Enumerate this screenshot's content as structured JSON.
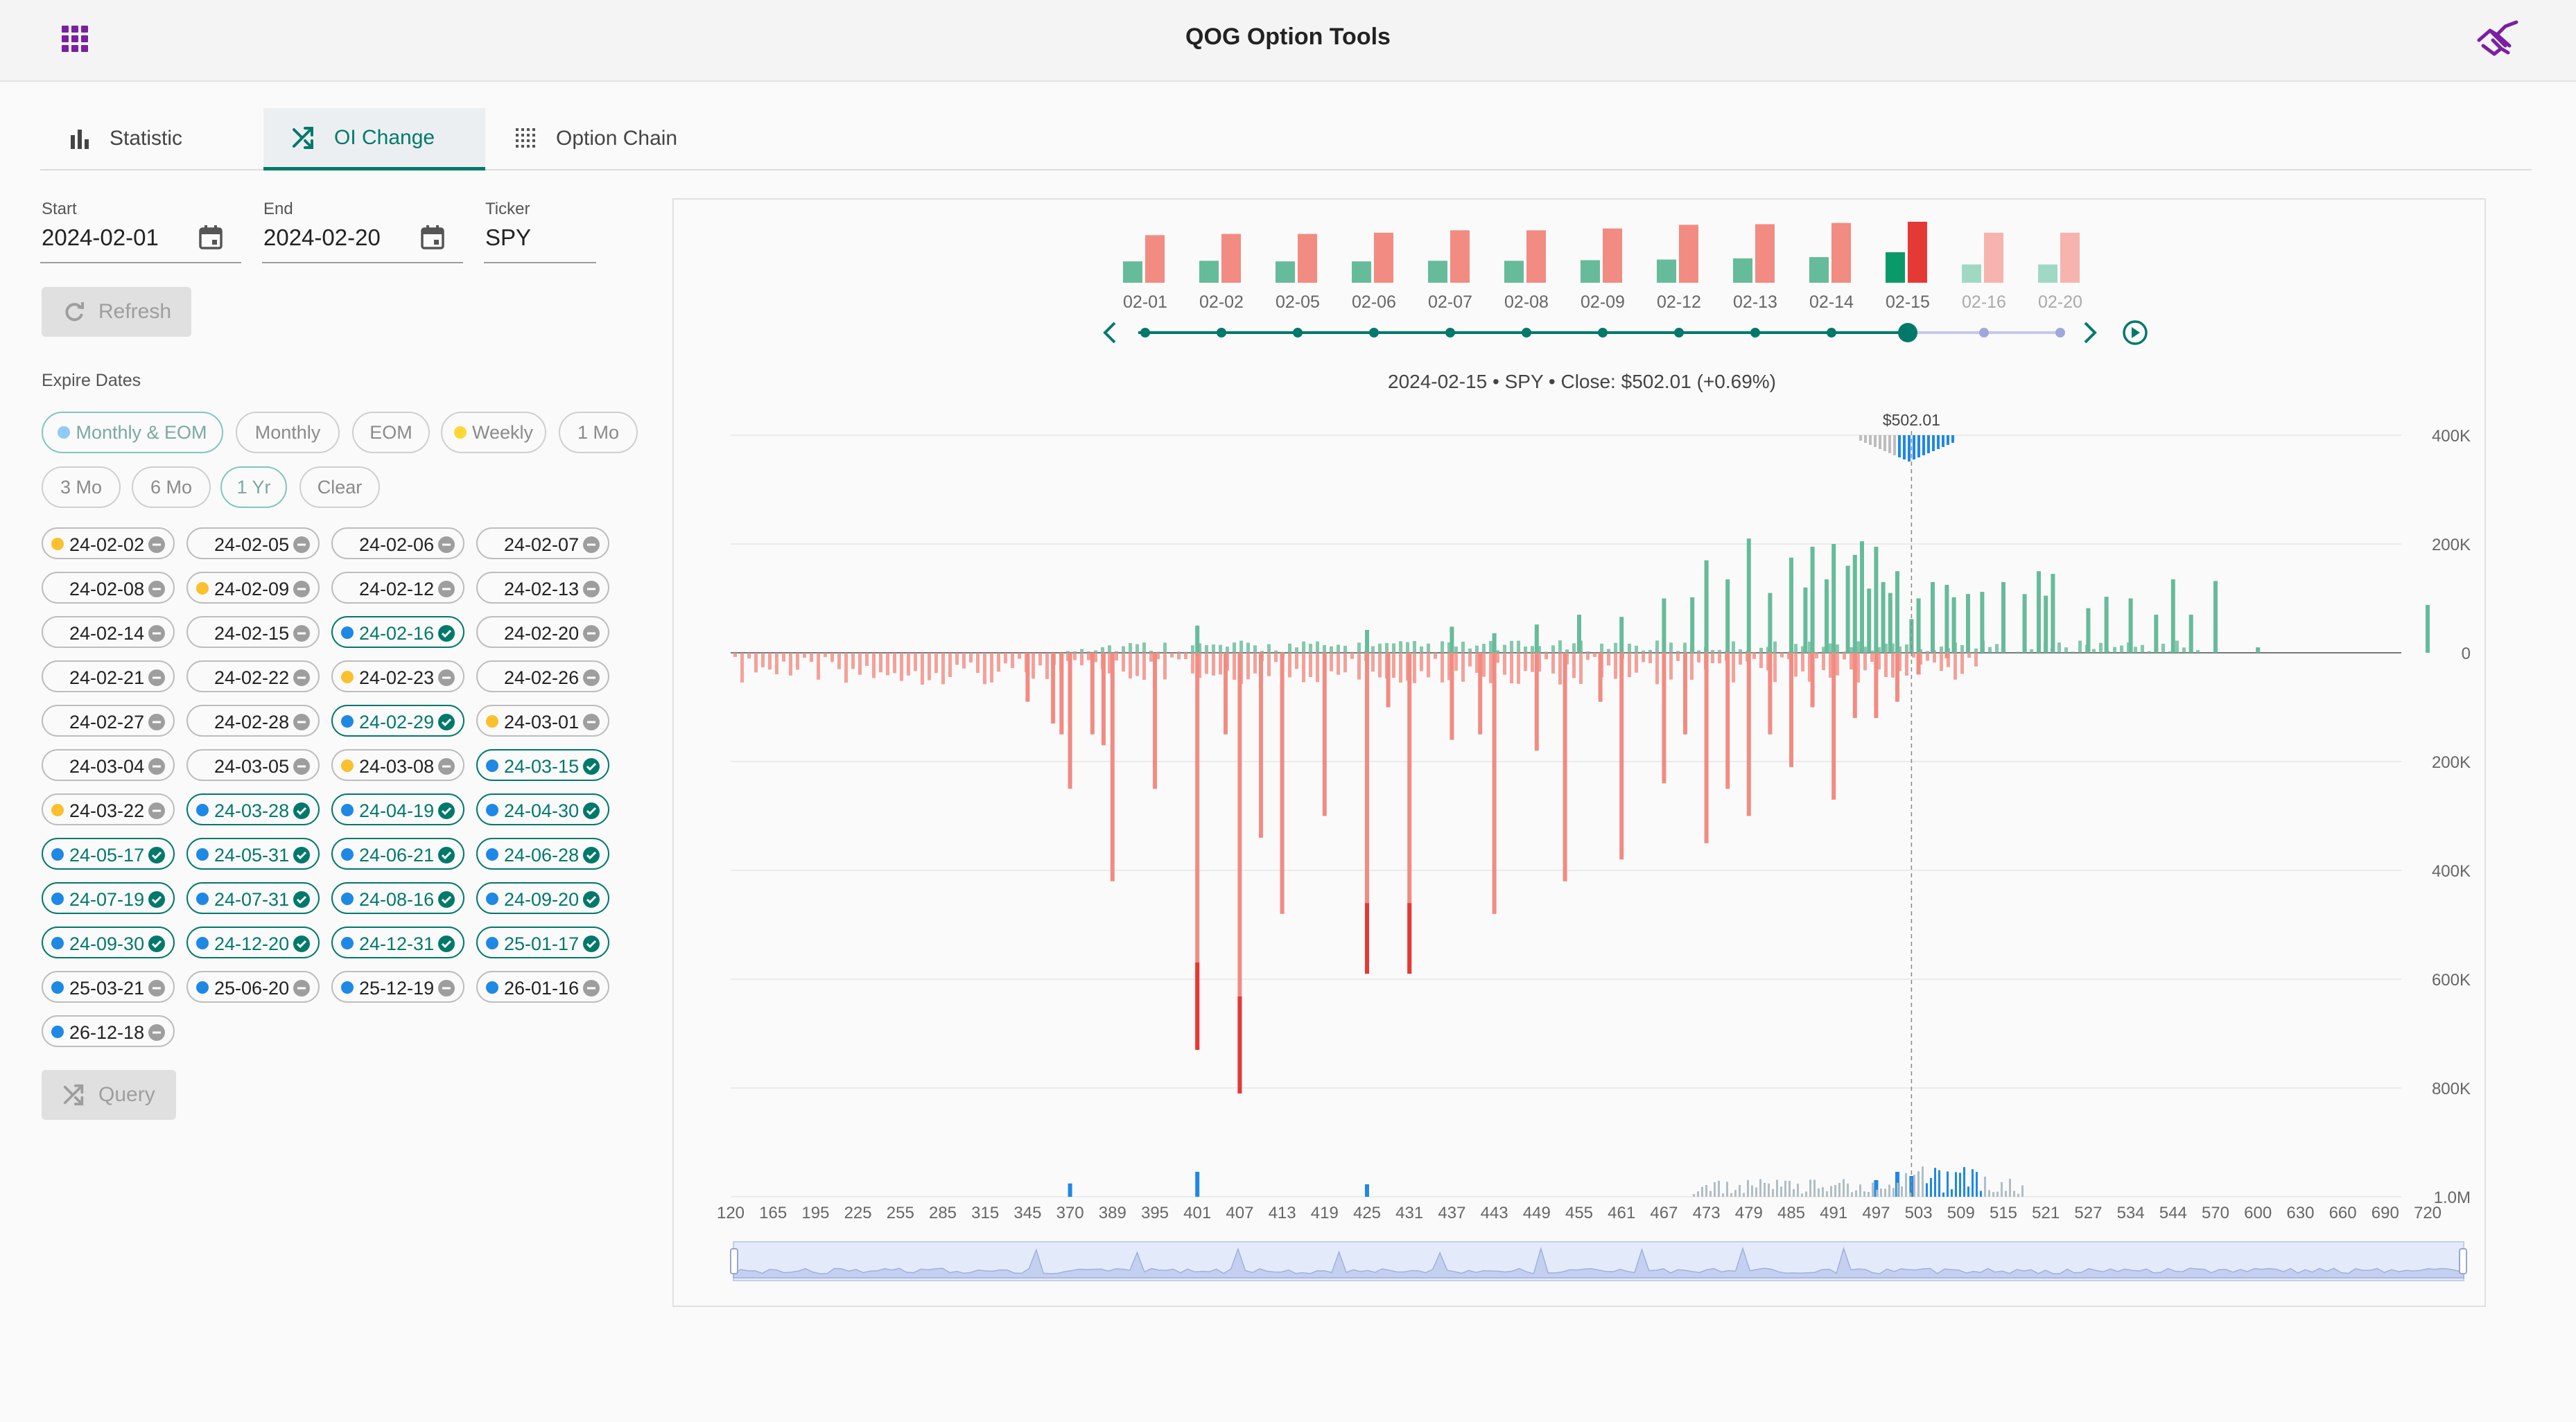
{
  "app": {
    "title": "QOG Option Tools"
  },
  "tabs": [
    {
      "id": "statistic",
      "label": "Statistic",
      "icon": "bar-chart-icon",
      "active": false
    },
    {
      "id": "oi-change",
      "label": "OI Change",
      "icon": "shuffle-icon",
      "active": true
    },
    {
      "id": "option-chain",
      "label": "Option Chain",
      "icon": "grid-icon",
      "active": false
    }
  ],
  "form": {
    "start": {
      "label": "Start",
      "value": "2024-02-01"
    },
    "end": {
      "label": "End",
      "value": "2024-02-20"
    },
    "ticker": {
      "label": "Ticker",
      "value": "SPY"
    },
    "refresh_label": "Refresh",
    "query_label": "Query"
  },
  "expire": {
    "label": "Expire Dates",
    "presets": [
      "Monthly & EOM",
      "Monthly",
      "EOM",
      "Weekly",
      "1 Mo",
      "3 Mo",
      "6 Mo",
      "1 Yr",
      "Clear"
    ],
    "dates": [
      {
        "label": "24-02-02",
        "dot": "yellow",
        "selected": false
      },
      {
        "label": "24-02-05",
        "dot": "none",
        "selected": false
      },
      {
        "label": "24-02-06",
        "dot": "none",
        "selected": false
      },
      {
        "label": "24-02-07",
        "dot": "none",
        "selected": false
      },
      {
        "label": "24-02-08",
        "dot": "none",
        "selected": false
      },
      {
        "label": "24-02-09",
        "dot": "yellow",
        "selected": false
      },
      {
        "label": "24-02-12",
        "dot": "none",
        "selected": false
      },
      {
        "label": "24-02-13",
        "dot": "none",
        "selected": false
      },
      {
        "label": "24-02-14",
        "dot": "none",
        "selected": false
      },
      {
        "label": "24-02-15",
        "dot": "none",
        "selected": false
      },
      {
        "label": "24-02-16",
        "dot": "blue",
        "selected": true
      },
      {
        "label": "24-02-20",
        "dot": "none",
        "selected": false
      },
      {
        "label": "24-02-21",
        "dot": "none",
        "selected": false
      },
      {
        "label": "24-02-22",
        "dot": "none",
        "selected": false
      },
      {
        "label": "24-02-23",
        "dot": "yellow",
        "selected": false
      },
      {
        "label": "24-02-26",
        "dot": "none",
        "selected": false
      },
      {
        "label": "24-02-27",
        "dot": "none",
        "selected": false
      },
      {
        "label": "24-02-28",
        "dot": "none",
        "selected": false
      },
      {
        "label": "24-02-29",
        "dot": "blue",
        "selected": true
      },
      {
        "label": "24-03-01",
        "dot": "yellow",
        "selected": false
      },
      {
        "label": "24-03-04",
        "dot": "none",
        "selected": false
      },
      {
        "label": "24-03-05",
        "dot": "none",
        "selected": false
      },
      {
        "label": "24-03-08",
        "dot": "yellow",
        "selected": false
      },
      {
        "label": "24-03-15",
        "dot": "blue",
        "selected": true
      },
      {
        "label": "24-03-22",
        "dot": "yellow",
        "selected": false
      },
      {
        "label": "24-03-28",
        "dot": "blue",
        "selected": true
      },
      {
        "label": "24-04-19",
        "dot": "blue",
        "selected": true
      },
      {
        "label": "24-04-30",
        "dot": "blue",
        "selected": true
      },
      {
        "label": "24-05-17",
        "dot": "blue",
        "selected": true
      },
      {
        "label": "24-05-31",
        "dot": "blue",
        "selected": true
      },
      {
        "label": "24-06-21",
        "dot": "blue",
        "selected": true
      },
      {
        "label": "24-06-28",
        "dot": "blue",
        "selected": true
      },
      {
        "label": "24-07-19",
        "dot": "blue",
        "selected": true
      },
      {
        "label": "24-07-31",
        "dot": "blue",
        "selected": true
      },
      {
        "label": "24-08-16",
        "dot": "blue",
        "selected": true
      },
      {
        "label": "24-09-20",
        "dot": "blue",
        "selected": true
      },
      {
        "label": "24-09-30",
        "dot": "blue",
        "selected": true
      },
      {
        "label": "24-12-20",
        "dot": "blue",
        "selected": true
      },
      {
        "label": "24-12-31",
        "dot": "blue",
        "selected": true
      },
      {
        "label": "25-01-17",
        "dot": "blue",
        "selected": true
      },
      {
        "label": "25-03-21",
        "dot": "blue",
        "selected": false
      },
      {
        "label": "25-06-20",
        "dot": "blue",
        "selected": false
      },
      {
        "label": "25-12-19",
        "dot": "blue",
        "selected": false
      },
      {
        "label": "26-01-16",
        "dot": "blue",
        "selected": false
      },
      {
        "label": "26-12-18",
        "dot": "blue",
        "selected": false
      }
    ]
  },
  "colors": {
    "accent": "#00796b",
    "call": "#66bb9a",
    "put": "#f28b82",
    "call_strong": "#0a9a6a",
    "put_strong": "#e53935",
    "volume": "#1e88e5",
    "dot_yellow": "#fbc02d",
    "dot_blue": "#1e88e5",
    "dot_lightblue": "#90caf9",
    "header_purple": "#7b1fa2"
  },
  "chart_data": [
    {
      "type": "bar",
      "role": "daily-oi-timeline",
      "categories": [
        "02-01",
        "02-02",
        "02-05",
        "02-06",
        "02-07",
        "02-08",
        "02-09",
        "02-12",
        "02-13",
        "02-14",
        "02-15",
        "02-16",
        "02-20"
      ],
      "series": [
        {
          "values": [
            0.35,
            0.36,
            0.35,
            0.35,
            0.36,
            0.36,
            0.37,
            0.38,
            0.4,
            0.42,
            0.5,
            0.3,
            0.3
          ]
        },
        {
          "values": [
            0.78,
            0.8,
            0.8,
            0.82,
            0.86,
            0.86,
            0.89,
            0.95,
            0.96,
            0.98,
            1.0,
            0.82,
            0.82
          ]
        }
      ],
      "selected": "02-15"
    },
    {
      "type": "bar",
      "role": "oi-change-by-strike",
      "subtitle": "2024-02-15 • SPY • Close: $502.01 (+0.69%)",
      "marker_label": "$502.01",
      "x_tick_labels": [
        "120",
        "165",
        "195",
        "225",
        "255",
        "285",
        "315",
        "345",
        "370",
        "389",
        "395",
        "401",
        "407",
        "413",
        "419",
        "425",
        "431",
        "437",
        "443",
        "449",
        "455",
        "461",
        "467",
        "473",
        "479",
        "485",
        "491",
        "497",
        "503",
        "509",
        "515",
        "521",
        "527",
        "534",
        "544",
        "570",
        "600",
        "630",
        "660",
        "690",
        "720"
      ],
      "y_tick_labels": [
        "400K",
        "200K",
        "0",
        "200K",
        "400K",
        "600K",
        "800K",
        "1.0M"
      ],
      "ylim": [
        -1000000,
        400000
      ],
      "calls": [
        {
          "x": 401,
          "y": 50000
        },
        {
          "x": 425,
          "y": 42000
        },
        {
          "x": 437,
          "y": 48000
        },
        {
          "x": 443,
          "y": 36000
        },
        {
          "x": 449,
          "y": 52000
        },
        {
          "x": 455,
          "y": 70000
        },
        {
          "x": 461,
          "y": 66000
        },
        {
          "x": 467,
          "y": 100000
        },
        {
          "x": 471,
          "y": 102000
        },
        {
          "x": 473,
          "y": 170000
        },
        {
          "x": 476,
          "y": 135000
        },
        {
          "x": 479,
          "y": 210000
        },
        {
          "x": 482,
          "y": 110000
        },
        {
          "x": 485,
          "y": 175000
        },
        {
          "x": 487,
          "y": 120000
        },
        {
          "x": 488,
          "y": 195000
        },
        {
          "x": 490,
          "y": 135000
        },
        {
          "x": 491,
          "y": 200000
        },
        {
          "x": 493,
          "y": 160000
        },
        {
          "x": 494,
          "y": 180000
        },
        {
          "x": 495,
          "y": 205000
        },
        {
          "x": 496,
          "y": 118000
        },
        {
          "x": 497,
          "y": 195000
        },
        {
          "x": 498,
          "y": 130000
        },
        {
          "x": 499,
          "y": 110000
        },
        {
          "x": 500,
          "y": 150000
        },
        {
          "x": 502,
          "y": 62000
        },
        {
          "x": 503,
          "y": 100000
        },
        {
          "x": 505,
          "y": 130000
        },
        {
          "x": 507,
          "y": 125000
        },
        {
          "x": 508,
          "y": 102000
        },
        {
          "x": 510,
          "y": 108000
        },
        {
          "x": 512,
          "y": 112000
        },
        {
          "x": 515,
          "y": 130000
        },
        {
          "x": 518,
          "y": 108000
        },
        {
          "x": 520,
          "y": 150000
        },
        {
          "x": 521,
          "y": 105000
        },
        {
          "x": 522,
          "y": 145000
        },
        {
          "x": 527,
          "y": 82000
        },
        {
          "x": 530,
          "y": 103000
        },
        {
          "x": 534,
          "y": 100000
        },
        {
          "x": 540,
          "y": 70000
        },
        {
          "x": 544,
          "y": 135000
        },
        {
          "x": 555,
          "y": 70000
        },
        {
          "x": 570,
          "y": 132000
        },
        {
          "x": 600,
          "y": 10000
        },
        {
          "x": 720,
          "y": 88000
        }
      ],
      "puts": [
        {
          "x": 345,
          "y": -90000
        },
        {
          "x": 360,
          "y": -130000
        },
        {
          "x": 365,
          "y": -150000
        },
        {
          "x": 370,
          "y": -250000
        },
        {
          "x": 380,
          "y": -150000
        },
        {
          "x": 385,
          "y": -170000
        },
        {
          "x": 389,
          "y": -420000
        },
        {
          "x": 395,
          "y": -250000
        },
        {
          "x": 401,
          "y": -730000
        },
        {
          "x": 405,
          "y": -150000
        },
        {
          "x": 407,
          "y": -810000
        },
        {
          "x": 410,
          "y": -340000
        },
        {
          "x": 413,
          "y": -480000
        },
        {
          "x": 419,
          "y": -300000
        },
        {
          "x": 425,
          "y": -590000
        },
        {
          "x": 428,
          "y": -100000
        },
        {
          "x": 431,
          "y": -590000
        },
        {
          "x": 437,
          "y": -160000
        },
        {
          "x": 441,
          "y": -150000
        },
        {
          "x": 443,
          "y": -480000
        },
        {
          "x": 449,
          "y": -180000
        },
        {
          "x": 453,
          "y": -420000
        },
        {
          "x": 458,
          "y": -90000
        },
        {
          "x": 461,
          "y": -380000
        },
        {
          "x": 467,
          "y": -240000
        },
        {
          "x": 470,
          "y": -150000
        },
        {
          "x": 473,
          "y": -350000
        },
        {
          "x": 476,
          "y": -250000
        },
        {
          "x": 479,
          "y": -300000
        },
        {
          "x": 482,
          "y": -150000
        },
        {
          "x": 485,
          "y": -210000
        },
        {
          "x": 488,
          "y": -100000
        },
        {
          "x": 491,
          "y": -270000
        },
        {
          "x": 494,
          "y": -120000
        },
        {
          "x": 497,
          "y": -120000
        },
        {
          "x": 500,
          "y": -90000
        },
        {
          "x": 503,
          "y": -40000
        },
        {
          "x": 507,
          "y": -10000
        }
      ],
      "volume": [
        {
          "x": 370,
          "y": 0.32
        },
        {
          "x": 401,
          "y": 0.6
        },
        {
          "x": 425,
          "y": 0.3
        },
        {
          "x": 497,
          "y": 0.4
        },
        {
          "x": 500,
          "y": 0.6
        },
        {
          "x": 502,
          "y": 0.5
        }
      ]
    }
  ]
}
